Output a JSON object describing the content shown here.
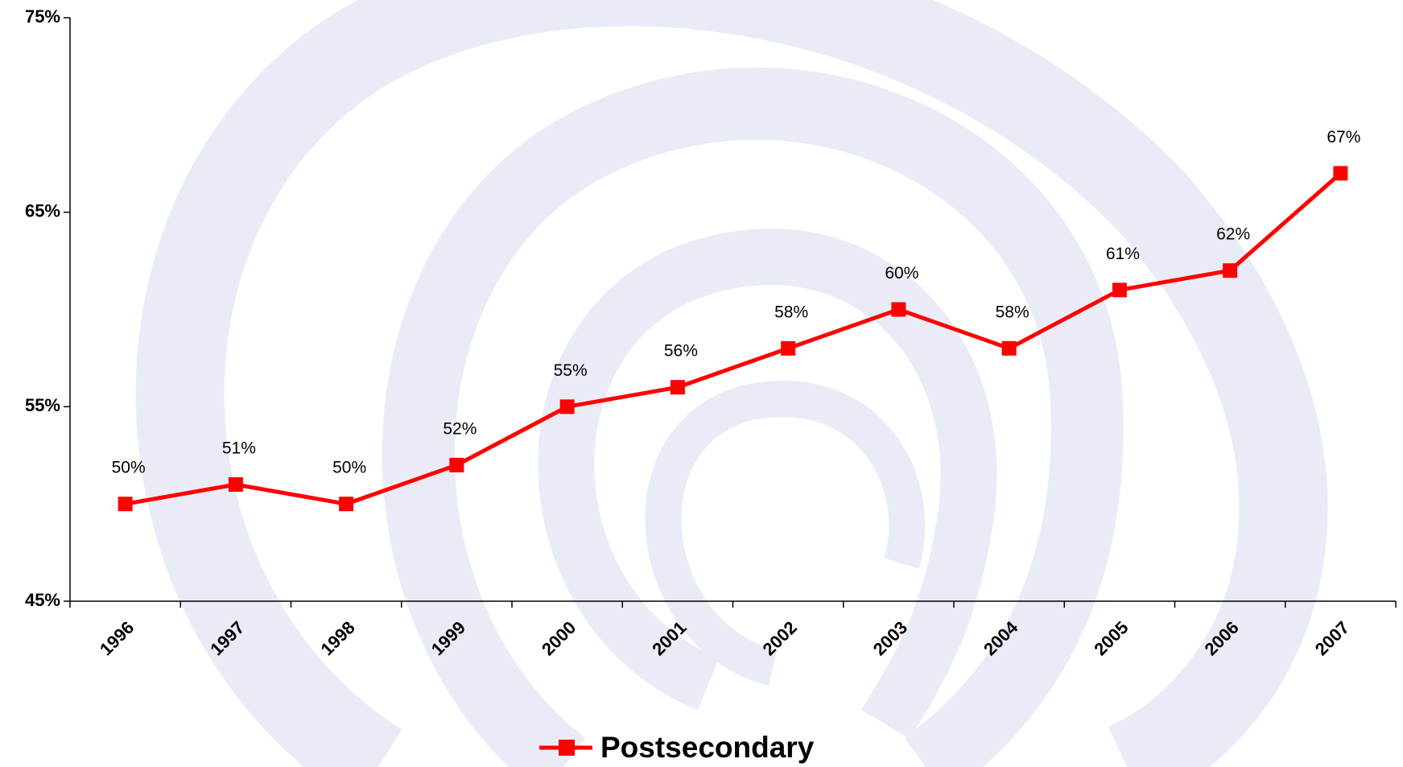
{
  "chart_data": {
    "type": "line",
    "categories": [
      "1996",
      "1997",
      "1998",
      "1999",
      "2000",
      "2001",
      "2002",
      "2003",
      "2004",
      "2005",
      "2006",
      "2007"
    ],
    "series": [
      {
        "name": "Postsecondary",
        "color": "#ff0000",
        "values": [
          50,
          51,
          50,
          52,
          55,
          56,
          58,
          60,
          58,
          61,
          62,
          67
        ],
        "value_labels": [
          "50%",
          "51%",
          "50%",
          "52%",
          "55%",
          "56%",
          "58%",
          "60%",
          "58%",
          "61%",
          "62%",
          "67%"
        ]
      }
    ],
    "ylim": [
      45,
      75
    ],
    "yticks": [
      {
        "value": 45,
        "label": "45%"
      },
      {
        "value": 55,
        "label": "55%"
      },
      {
        "value": 65,
        "label": "65%"
      },
      {
        "value": 75,
        "label": "75%"
      }
    ],
    "legend": "bottom"
  }
}
